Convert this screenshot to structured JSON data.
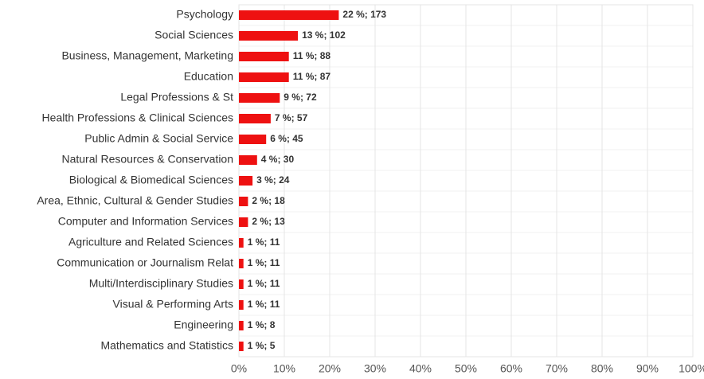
{
  "chart_data": {
    "type": "bar",
    "orientation": "horizontal",
    "color": "#ee1111",
    "grid": true,
    "categories": [
      "Psychology",
      "Social Sciences",
      "Business, Management, Marketing",
      "Education",
      "Legal Professions & St",
      "Health Professions & Clinical Sciences",
      "Public Admin & Social Service",
      "Natural Resources & Conservation",
      "Biological & Biomedical Sciences",
      "Area, Ethnic, Cultural & Gender Studies",
      "Computer and Information Services",
      "Agriculture and Related Sciences",
      "Communication or Journalism Relat",
      "Multi/Interdisciplinary Studies",
      "Visual & Performing Arts",
      "Engineering",
      "Mathematics and Statistics"
    ],
    "values": [
      22,
      13,
      11,
      11,
      9,
      7,
      6,
      4,
      3,
      2,
      2,
      1,
      1,
      1,
      1,
      1,
      1
    ],
    "value_labels": [
      "22 %; 173",
      "13 %; 102",
      "11 %; 88",
      "11 %; 87",
      "9 %; 72",
      "7 %; 57",
      "6 %; 45",
      "4 %; 30",
      "3 %; 24",
      "2 %; 18",
      "2 %; 13",
      "1 %; 11",
      "1 %; 11",
      "1 %; 11",
      "1 %; 11",
      "1 %; 8",
      "1 %; 5"
    ],
    "xlim": [
      0,
      100
    ],
    "xticks": [
      {
        "value": 0,
        "label": "0%"
      },
      {
        "value": 10,
        "label": "10%"
      },
      {
        "value": 20,
        "label": "20%"
      },
      {
        "value": 30,
        "label": "30%"
      },
      {
        "value": 40,
        "label": "40%"
      },
      {
        "value": 50,
        "label": "50%"
      },
      {
        "value": 60,
        "label": "60%"
      },
      {
        "value": 70,
        "label": "70%"
      },
      {
        "value": 80,
        "label": "80%"
      },
      {
        "value": 90,
        "label": "90%"
      },
      {
        "value": 100,
        "label": "100%"
      }
    ]
  }
}
